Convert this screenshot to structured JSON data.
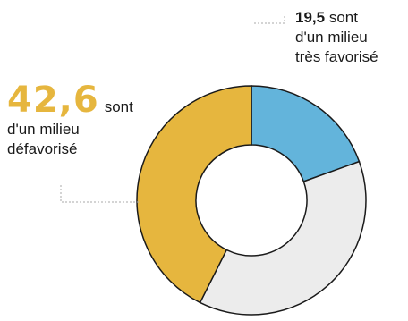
{
  "chart_data": {
    "type": "pie",
    "style": "donut",
    "slices": [
      {
        "value": 19.5,
        "color": "#63b4db"
      },
      {
        "value": 37.9,
        "color": "#ececec"
      },
      {
        "value": 42.6,
        "color": "#e6b63e"
      }
    ],
    "annotations": {
      "very_favored": {
        "value": "19,5",
        "text_after_value": "sont",
        "line2": "d'un milieu",
        "line3": "très favorisé"
      },
      "disadvantaged": {
        "value": "42,6",
        "text_after_value": "sont",
        "line2": "d'un milieu",
        "line3": "défavorisé"
      }
    }
  }
}
